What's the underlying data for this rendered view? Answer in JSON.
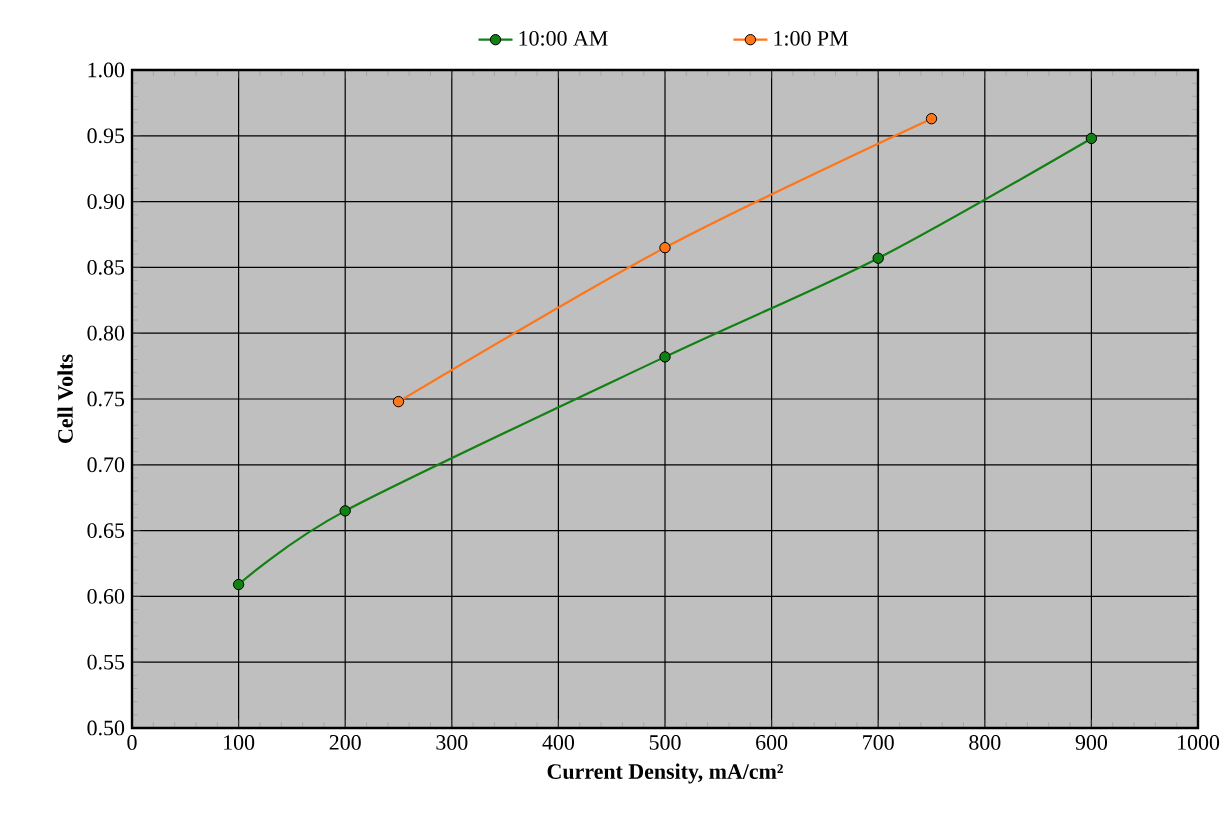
{
  "chart_data": {
    "type": "line",
    "xlabel": "Current Density, mA/cm²",
    "ylabel": "Cell Volts",
    "xlim": [
      0,
      1000
    ],
    "xticks": [
      0,
      100,
      200,
      300,
      400,
      500,
      600,
      700,
      800,
      900,
      1000
    ],
    "ylim": [
      0.5,
      1.0
    ],
    "yticks": [
      {
        "value": 0.5,
        "label": "0.50"
      },
      {
        "value": 0.55,
        "label": "0.55"
      },
      {
        "value": 0.6,
        "label": "0.60"
      },
      {
        "value": 0.65,
        "label": "0.65"
      },
      {
        "value": 0.7,
        "label": "0.70"
      },
      {
        "value": 0.75,
        "label": "0.75"
      },
      {
        "value": 0.8,
        "label": "0.80"
      },
      {
        "value": 0.85,
        "label": "0.85"
      },
      {
        "value": 0.9,
        "label": "0.90"
      },
      {
        "value": 0.95,
        "label": "0.95"
      },
      {
        "value": 1.0,
        "label": "1.00"
      }
    ],
    "grid": true,
    "legend": "top",
    "marker": "circle",
    "line_style": "solid",
    "series": [
      {
        "name": "10:00 AM",
        "color": "#138013",
        "x": [
          100,
          200,
          500,
          700,
          900
        ],
        "values": [
          0.609,
          0.665,
          0.782,
          0.857,
          0.948
        ]
      },
      {
        "name": "1:00 PM",
        "color": "#ff7518",
        "x": [
          250,
          500,
          750
        ],
        "values": [
          0.748,
          0.865,
          0.963
        ]
      }
    ]
  }
}
